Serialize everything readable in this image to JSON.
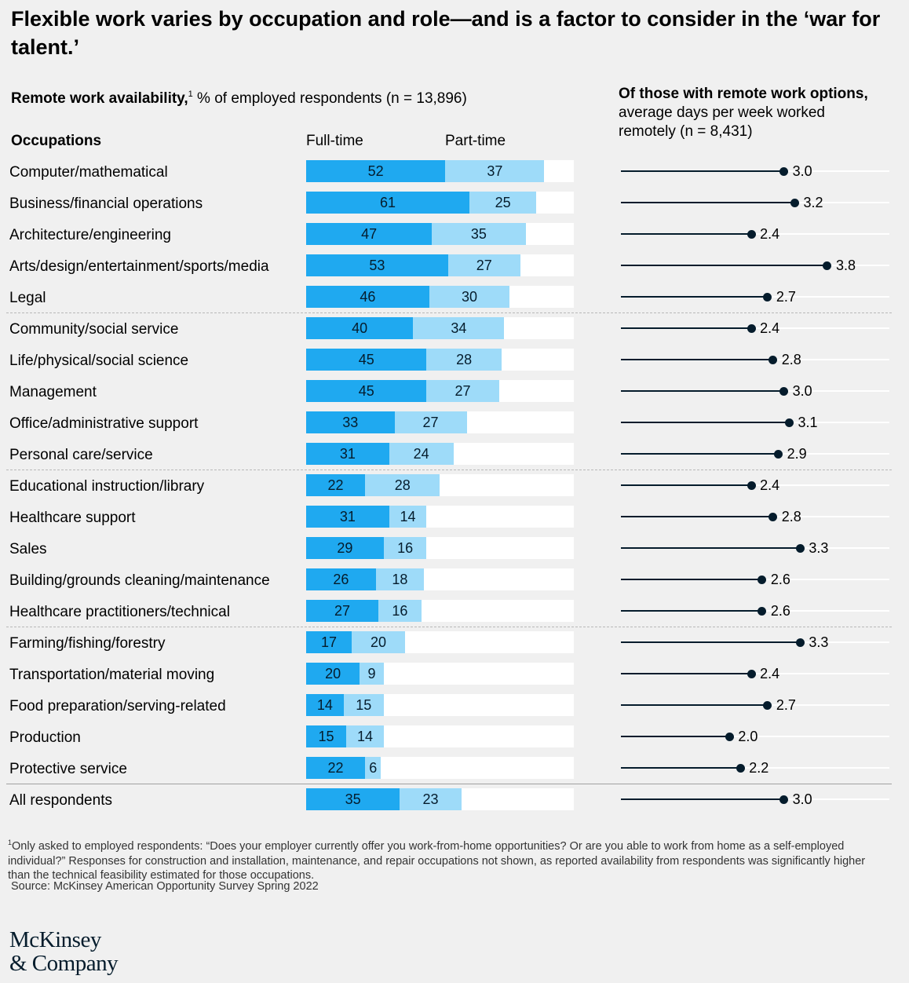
{
  "title": "Flexible work varies by occupation and role—and is a factor to consider in the ‘war for talent.’",
  "subtitle_left": {
    "bold": "Remote work availability,",
    "sup": "1",
    "rest": " % of employed respondents (n = 13,896)"
  },
  "subtitle_right": {
    "bold": "Of those with remote work options,",
    "rest": " average days per week worked remotely (n = 8,431)"
  },
  "column_headers": {
    "occupations": "Occupations",
    "full_time": "Full-time",
    "part_time": "Part-time"
  },
  "colors": {
    "full_time": "#1fa9f0",
    "part_time": "#9edbf9",
    "dot": "#051c2c"
  },
  "chart_data": [
    {
      "type": "bar",
      "stacked": true,
      "orientation": "horizontal",
      "categories": [
        "Computer/mathematical",
        "Business/financial operations",
        "Architecture/engineering",
        "Arts/design/entertainment/sports/media",
        "Legal",
        "Community/social service",
        "Life/physical/social science",
        "Management",
        "Office/administrative support",
        "Personal care/service",
        "Educational instruction/library",
        "Healthcare support",
        "Sales",
        "Building/grounds cleaning/maintenance",
        "Healthcare practitioners/technical",
        "Farming/fishing/forestry",
        "Transportation/material moving",
        "Food preparation/serving-related",
        "Production",
        "Protective service",
        "All respondents"
      ],
      "series": [
        {
          "name": "Full-time",
          "values": [
            52,
            61,
            47,
            53,
            46,
            40,
            45,
            45,
            33,
            31,
            22,
            31,
            29,
            26,
            27,
            17,
            20,
            14,
            15,
            22,
            35
          ]
        },
        {
          "name": "Part-time",
          "values": [
            37,
            25,
            35,
            27,
            30,
            34,
            28,
            27,
            27,
            24,
            28,
            14,
            16,
            18,
            16,
            20,
            9,
            15,
            14,
            6,
            23
          ]
        }
      ],
      "xlim": [
        0,
        100
      ]
    },
    {
      "type": "scatter",
      "categories": [
        "Computer/mathematical",
        "Business/financial operations",
        "Architecture/engineering",
        "Arts/design/entertainment/sports/media",
        "Legal",
        "Community/social service",
        "Life/physical/social science",
        "Management",
        "Office/administrative support",
        "Personal care/service",
        "Educational instruction/library",
        "Healthcare support",
        "Sales",
        "Building/grounds cleaning/maintenance",
        "Healthcare practitioners/technical",
        "Farming/fishing/forestry",
        "Transportation/material moving",
        "Food preparation/serving-related",
        "Production",
        "Protective service",
        "All respondents"
      ],
      "values": [
        3.0,
        3.2,
        2.4,
        3.8,
        2.7,
        2.4,
        2.8,
        3.0,
        3.1,
        2.9,
        2.4,
        2.8,
        3.3,
        2.6,
        2.6,
        3.3,
        2.4,
        2.7,
        2.0,
        2.2,
        3.0
      ],
      "labels": [
        "3.0",
        "3.2",
        "2.4",
        "3.8",
        "2.7",
        "2.4",
        "2.8",
        "3.0",
        "3.1",
        "2.9",
        "2.4",
        "2.8",
        "3.3",
        "2.6",
        "2.6",
        "3.3",
        "2.4",
        "2.7",
        "2.0",
        "2.2",
        "3.0"
      ],
      "xlim": [
        0,
        5
      ]
    }
  ],
  "footnote": {
    "sup": "1",
    "text": "Only asked to employed respondents: “Does your employer currently offer you work-from-home opportunities? Or are you able to work from home as a self-employed individual?” Responses for construction and installation, maintenance, and repair occupations not shown, as reported availability from respondents was significantly higher than the technical feasibility estimated for those occupations."
  },
  "source": "Source: McKinsey American Opportunity Survey Spring 2022",
  "logo": {
    "line1": "McKinsey",
    "line2": "& Company"
  }
}
